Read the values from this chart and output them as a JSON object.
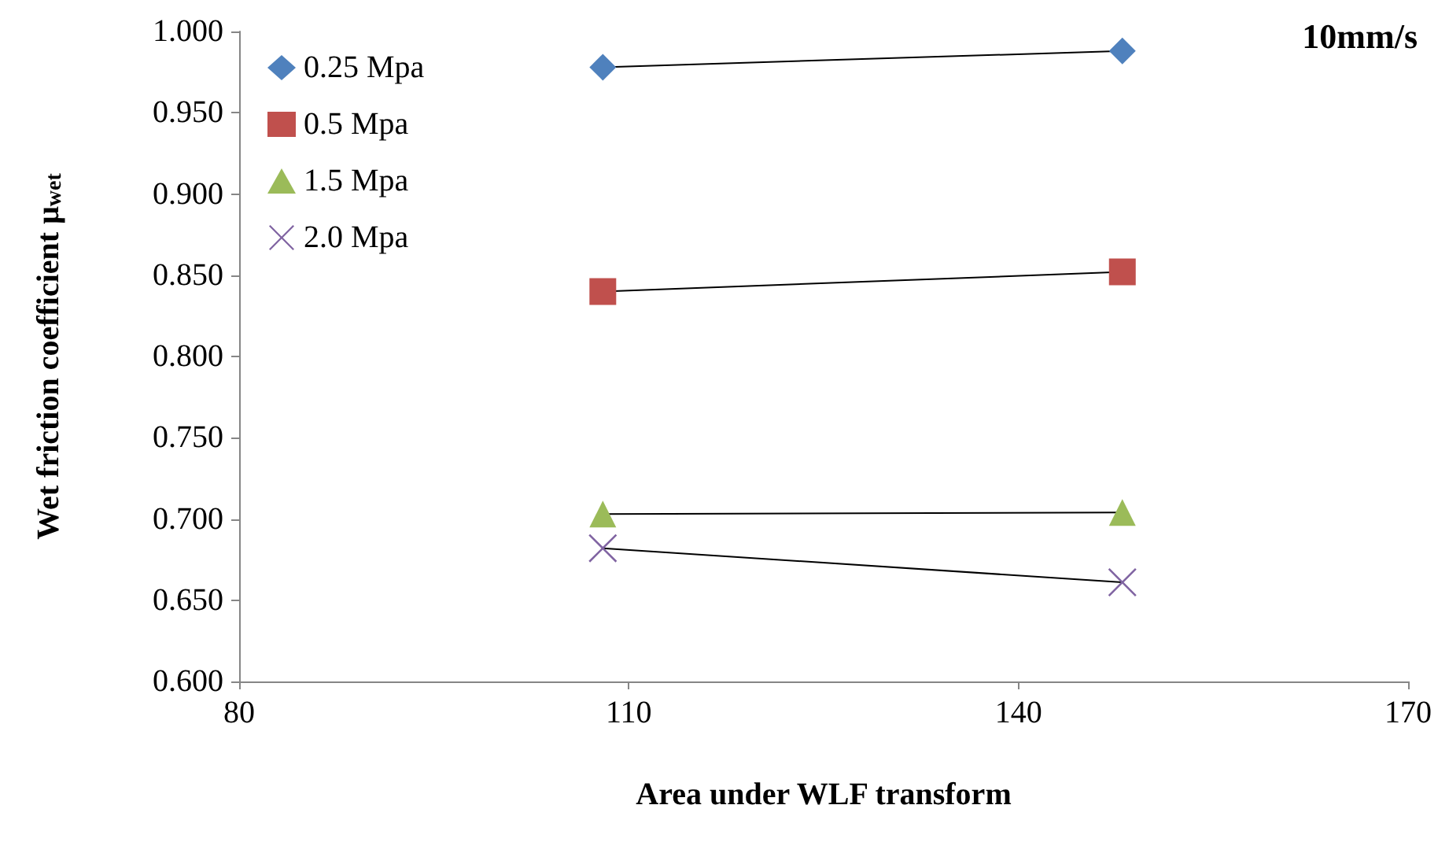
{
  "chart_data": {
    "type": "line",
    "xlabel": "Area under WLF transform",
    "ylabel": "Wet friction coefficient μ$_{wet}$",
    "annotations": [
      "10mm/s"
    ],
    "xlim": [
      80,
      170
    ],
    "xticks": [
      80,
      110,
      140,
      170
    ],
    "ylim": [
      0.6,
      1.0
    ],
    "yticks": [
      {
        "value": 0.6,
        "label": "0.600"
      },
      {
        "value": 0.65,
        "label": "0.650"
      },
      {
        "value": 0.7,
        "label": "0.700"
      },
      {
        "value": 0.75,
        "label": "0.750"
      },
      {
        "value": 0.8,
        "label": "0.800"
      },
      {
        "value": 0.85,
        "label": "0.850"
      },
      {
        "value": 0.9,
        "label": "0.900"
      },
      {
        "value": 0.95,
        "label": "0.950"
      },
      {
        "value": 1.0,
        "label": "1.000"
      }
    ],
    "grid": false,
    "legend": "top left",
    "line_style": "solid",
    "x": [
      108,
      148
    ],
    "series": [
      {
        "name": "0.25 Mpa",
        "color": "#4f81bd",
        "marker": "diamond",
        "values": [
          0.978,
          0.988
        ]
      },
      {
        "name": "0.5 Mpa",
        "color": "#c0504d",
        "marker": "square",
        "values": [
          0.84,
          0.852
        ]
      },
      {
        "name": "1.5 Mpa",
        "color": "#9bbb59",
        "marker": "triangle",
        "values": [
          0.703,
          0.704
        ]
      },
      {
        "name": "2.0 Mpa",
        "color": "#8064a2",
        "marker": "cross",
        "values": [
          0.682,
          0.661
        ]
      }
    ]
  }
}
